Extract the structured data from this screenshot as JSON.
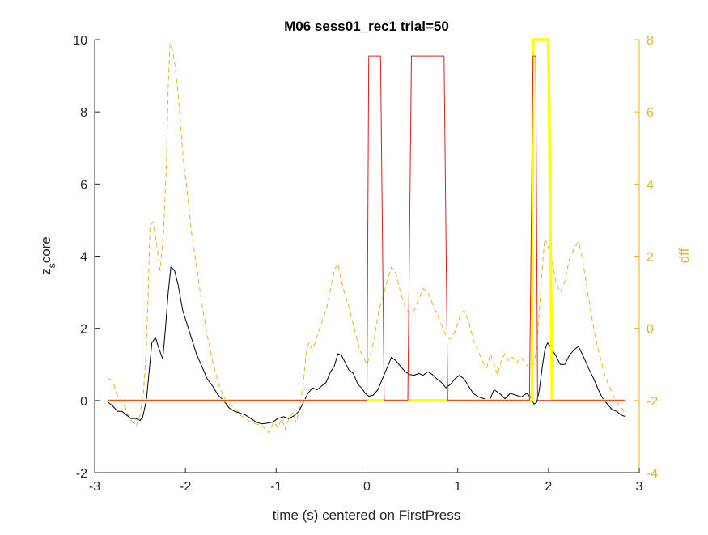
{
  "chart_data": {
    "type": "line",
    "title": "M06 sess01_rec1 trial=50",
    "xlabel": "time (s) centered on FirstPress",
    "ylabel_left": {
      "main": "z",
      "sub": "s",
      "rest": "core"
    },
    "ylabel_right": "dff",
    "xlim": [
      -3,
      3
    ],
    "ylim_left": [
      -2,
      10
    ],
    "ylim_right": [
      -4,
      8
    ],
    "x_ticks": [
      -3,
      -2,
      -1,
      0,
      1,
      2,
      3
    ],
    "x_tick_labels": [
      "-3",
      "-2",
      "-1",
      "0",
      "1",
      "2",
      "3"
    ],
    "y_left_ticks": [
      -2,
      0,
      2,
      4,
      6,
      8,
      10
    ],
    "y_left_tick_labels": [
      "-2",
      "0",
      "2",
      "4",
      "6",
      "8",
      "10"
    ],
    "y_right_ticks": [
      -4,
      -2,
      0,
      2,
      4,
      6,
      8
    ],
    "y_right_tick_labels": [
      "-4",
      "-2",
      "0",
      "2",
      "4",
      "6",
      "8"
    ],
    "grid": false,
    "colors": {
      "axis": "#262626",
      "right_axis": "#EDB120",
      "zscore": "#000000",
      "dff": "#EDB120",
      "red_events": "#D62020",
      "yellow_events": "#FFFF00"
    },
    "series": [
      {
        "axis": "left",
        "style": "solid",
        "color": "#000000",
        "points": [
          [
            -2.85,
            -0.05
          ],
          [
            -2.8,
            -0.15
          ],
          [
            -2.75,
            -0.3
          ],
          [
            -2.7,
            -0.3
          ],
          [
            -2.65,
            -0.4
          ],
          [
            -2.6,
            -0.5
          ],
          [
            -2.55,
            -0.5
          ],
          [
            -2.5,
            -0.55
          ],
          [
            -2.47,
            -0.45
          ],
          [
            -2.43,
            0
          ],
          [
            -2.4,
            0.8
          ],
          [
            -2.37,
            1.6
          ],
          [
            -2.33,
            1.75
          ],
          [
            -2.3,
            1.5
          ],
          [
            -2.25,
            1.15
          ],
          [
            -2.22,
            2
          ],
          [
            -2.19,
            3
          ],
          [
            -2.16,
            3.7
          ],
          [
            -2.12,
            3.6
          ],
          [
            -2.08,
            3.2
          ],
          [
            -2.03,
            2.5
          ],
          [
            -1.98,
            2.1
          ],
          [
            -1.93,
            1.7
          ],
          [
            -1.88,
            1.3
          ],
          [
            -1.82,
            0.95
          ],
          [
            -1.76,
            0.6
          ],
          [
            -1.7,
            0.4
          ],
          [
            -1.64,
            0.15
          ],
          [
            -1.58,
            0
          ],
          [
            -1.52,
            -0.2
          ],
          [
            -1.46,
            -0.3
          ],
          [
            -1.4,
            -0.35
          ],
          [
            -1.34,
            -0.4
          ],
          [
            -1.28,
            -0.5
          ],
          [
            -1.22,
            -0.6
          ],
          [
            -1.16,
            -0.65
          ],
          [
            -1.1,
            -0.63
          ],
          [
            -1.04,
            -0.6
          ],
          [
            -0.98,
            -0.5
          ],
          [
            -0.92,
            -0.45
          ],
          [
            -0.86,
            -0.5
          ],
          [
            -0.8,
            -0.42
          ],
          [
            -0.75,
            -0.3
          ],
          [
            -0.7,
            -0.05
          ],
          [
            -0.65,
            0.2
          ],
          [
            -0.6,
            0.35
          ],
          [
            -0.55,
            0.3
          ],
          [
            -0.5,
            0.4
          ],
          [
            -0.45,
            0.5
          ],
          [
            -0.4,
            0.8
          ],
          [
            -0.36,
            0.95
          ],
          [
            -0.32,
            1.3
          ],
          [
            -0.28,
            1.25
          ],
          [
            -0.24,
            1.05
          ],
          [
            -0.2,
            0.85
          ],
          [
            -0.15,
            0.75
          ],
          [
            -0.1,
            0.45
          ],
          [
            -0.06,
            0.35
          ],
          [
            -0.02,
            0.2
          ],
          [
            0.02,
            0.12
          ],
          [
            0.07,
            0.15
          ],
          [
            0.12,
            0.3
          ],
          [
            0.17,
            0.6
          ],
          [
            0.22,
            0.9
          ],
          [
            0.27,
            1.2
          ],
          [
            0.32,
            1.1
          ],
          [
            0.37,
            0.95
          ],
          [
            0.42,
            0.8
          ],
          [
            0.47,
            0.72
          ],
          [
            0.52,
            0.7
          ],
          [
            0.57,
            0.75
          ],
          [
            0.62,
            0.7
          ],
          [
            0.67,
            0.8
          ],
          [
            0.72,
            0.72
          ],
          [
            0.77,
            0.6
          ],
          [
            0.82,
            0.5
          ],
          [
            0.87,
            0.35
          ],
          [
            0.92,
            0.45
          ],
          [
            0.97,
            0.6
          ],
          [
            1.02,
            0.7
          ],
          [
            1.07,
            0.6
          ],
          [
            1.12,
            0.4
          ],
          [
            1.17,
            0.2
          ],
          [
            1.23,
            0.1
          ],
          [
            1.29,
            0.05
          ],
          [
            1.35,
            0.0
          ],
          [
            1.4,
            0.3
          ],
          [
            1.46,
            0.2
          ],
          [
            1.52,
            0.05
          ],
          [
            1.58,
            0.2
          ],
          [
            1.64,
            0.15
          ],
          [
            1.7,
            0.1
          ],
          [
            1.76,
            0.2
          ],
          [
            1.8,
            0.1
          ],
          [
            1.84,
            -0.1
          ],
          [
            1.87,
            -0.05
          ],
          [
            1.9,
            0.3
          ],
          [
            1.93,
            0.9
          ],
          [
            1.96,
            1.4
          ],
          [
            1.99,
            1.6
          ],
          [
            2.03,
            1.45
          ],
          [
            2.08,
            1.25
          ],
          [
            2.13,
            1.0
          ],
          [
            2.18,
            1.0
          ],
          [
            2.23,
            1.25
          ],
          [
            2.28,
            1.4
          ],
          [
            2.33,
            1.5
          ],
          [
            2.38,
            1.25
          ],
          [
            2.44,
            0.9
          ],
          [
            2.5,
            0.6
          ],
          [
            2.55,
            0.3
          ],
          [
            2.6,
            0.05
          ],
          [
            2.65,
            -0.1
          ],
          [
            2.7,
            -0.25
          ],
          [
            2.75,
            -0.3
          ],
          [
            2.8,
            -0.4
          ],
          [
            2.85,
            -0.45
          ]
        ]
      },
      {
        "axis": "right",
        "style": "dashed",
        "color": "#EDB120",
        "points": [
          [
            -2.85,
            -1.4
          ],
          [
            -2.8,
            -1.45
          ],
          [
            -2.76,
            -1.8
          ],
          [
            -2.71,
            -2.0
          ],
          [
            -2.66,
            -2.2
          ],
          [
            -2.62,
            -2.5
          ],
          [
            -2.58,
            -2.6
          ],
          [
            -2.54,
            -2.7
          ],
          [
            -2.5,
            -2.4
          ],
          [
            -2.46,
            -1.7
          ],
          [
            -2.43,
            -0.5
          ],
          [
            -2.41,
            1.0
          ],
          [
            -2.39,
            2.8
          ],
          [
            -2.36,
            2.95
          ],
          [
            -2.32,
            2.4
          ],
          [
            -2.28,
            1.6
          ],
          [
            -2.24,
            2.7
          ],
          [
            -2.21,
            4.5
          ],
          [
            -2.19,
            6.7
          ],
          [
            -2.17,
            7.9
          ],
          [
            -2.14,
            7.7
          ],
          [
            -2.11,
            7.2
          ],
          [
            -2.08,
            6.5
          ],
          [
            -2.05,
            5.5
          ],
          [
            -2.02,
            4.6
          ],
          [
            -1.98,
            3.8
          ],
          [
            -1.93,
            2.6
          ],
          [
            -1.87,
            1.6
          ],
          [
            -1.82,
            0.7
          ],
          [
            -1.76,
            -0.2
          ],
          [
            -1.7,
            -0.9
          ],
          [
            -1.64,
            -1.5
          ],
          [
            -1.58,
            -1.9
          ],
          [
            -1.52,
            -2.1
          ],
          [
            -1.46,
            -2.2
          ],
          [
            -1.4,
            -2.4
          ],
          [
            -1.34,
            -2.5
          ],
          [
            -1.28,
            -2.6
          ],
          [
            -1.22,
            -2.65
          ],
          [
            -1.16,
            -2.7
          ],
          [
            -1.12,
            -2.8
          ],
          [
            -1.08,
            -2.9
          ],
          [
            -1.03,
            -2.6
          ],
          [
            -0.98,
            -2.75
          ],
          [
            -0.94,
            -2.5
          ],
          [
            -0.9,
            -2.8
          ],
          [
            -0.86,
            -2.5
          ],
          [
            -0.82,
            -2.35
          ],
          [
            -0.78,
            -2.6
          ],
          [
            -0.74,
            -2.2
          ],
          [
            -0.7,
            -1.5
          ],
          [
            -0.67,
            -0.7
          ],
          [
            -0.64,
            -0.4
          ],
          [
            -0.6,
            -0.6
          ],
          [
            -0.56,
            -0.3
          ],
          [
            -0.52,
            0.0
          ],
          [
            -0.48,
            0.3
          ],
          [
            -0.44,
            0.6
          ],
          [
            -0.4,
            1.1
          ],
          [
            -0.36,
            1.6
          ],
          [
            -0.32,
            1.8
          ],
          [
            -0.28,
            1.3
          ],
          [
            -0.24,
            0.9
          ],
          [
            -0.2,
            0.6
          ],
          [
            -0.16,
            0.2
          ],
          [
            -0.12,
            -0.2
          ],
          [
            -0.08,
            -0.6
          ],
          [
            -0.04,
            -0.8
          ],
          [
            0.0,
            -1.0
          ],
          [
            0.04,
            -0.7
          ],
          [
            0.08,
            -0.3
          ],
          [
            0.13,
            0.5
          ],
          [
            0.18,
            0.9
          ],
          [
            0.22,
            1.3
          ],
          [
            0.27,
            1.7
          ],
          [
            0.32,
            1.5
          ],
          [
            0.37,
            1.0
          ],
          [
            0.42,
            0.6
          ],
          [
            0.47,
            0.4
          ],
          [
            0.52,
            0.5
          ],
          [
            0.57,
            0.8
          ],
          [
            0.62,
            1.1
          ],
          [
            0.67,
            1.0
          ],
          [
            0.72,
            0.7
          ],
          [
            0.77,
            0.4
          ],
          [
            0.82,
            0.1
          ],
          [
            0.87,
            -0.2
          ],
          [
            0.92,
            -0.3
          ],
          [
            0.97,
            -0.1
          ],
          [
            1.02,
            0.3
          ],
          [
            1.07,
            0.5
          ],
          [
            1.12,
            0.2
          ],
          [
            1.17,
            -0.3
          ],
          [
            1.22,
            -0.6
          ],
          [
            1.27,
            -0.9
          ],
          [
            1.32,
            -1.1
          ],
          [
            1.36,
            -0.7
          ],
          [
            1.4,
            -1.0
          ],
          [
            1.44,
            -1.3
          ],
          [
            1.48,
            -0.9
          ],
          [
            1.52,
            -0.7
          ],
          [
            1.56,
            -0.9
          ],
          [
            1.6,
            -0.8
          ],
          [
            1.65,
            -0.95
          ],
          [
            1.7,
            -0.8
          ],
          [
            1.75,
            -1.0
          ],
          [
            1.8,
            -1.1
          ],
          [
            1.84,
            -1.0
          ],
          [
            1.87,
            -0.5
          ],
          [
            1.9,
            0.5
          ],
          [
            1.93,
            1.6
          ],
          [
            1.96,
            2.5
          ],
          [
            1.99,
            2.3
          ],
          [
            2.03,
            2.0
          ],
          [
            2.08,
            1.3
          ],
          [
            2.13,
            1.0
          ],
          [
            2.18,
            1.3
          ],
          [
            2.23,
            1.9
          ],
          [
            2.28,
            2.2
          ],
          [
            2.33,
            2.4
          ],
          [
            2.37,
            2.0
          ],
          [
            2.42,
            1.2
          ],
          [
            2.47,
            0.4
          ],
          [
            2.52,
            -0.3
          ],
          [
            2.57,
            -0.8
          ],
          [
            2.62,
            -1.3
          ],
          [
            2.67,
            -1.6
          ],
          [
            2.72,
            -1.9
          ],
          [
            2.77,
            -2.1
          ],
          [
            2.82,
            -2.25
          ],
          [
            2.85,
            -2.4
          ]
        ]
      },
      {
        "axis": "left",
        "style": "solid",
        "color": "#D62020",
        "points": [
          [
            -2.85,
            0
          ],
          [
            0.0,
            0
          ],
          [
            0.02,
            9.55
          ],
          [
            0.15,
            9.55
          ],
          [
            0.19,
            0
          ],
          [
            0.45,
            0
          ],
          [
            0.49,
            9.55
          ],
          [
            0.85,
            9.55
          ],
          [
            0.89,
            0
          ],
          [
            1.79,
            0
          ],
          [
            1.83,
            9.55
          ],
          [
            1.86,
            9.55
          ],
          [
            1.88,
            0
          ],
          [
            2.85,
            0
          ]
        ]
      },
      {
        "axis": "left",
        "style": "solid_thick",
        "color": "#FFFF00",
        "points": [
          [
            -2.85,
            0
          ],
          [
            1.82,
            0
          ],
          [
            1.83,
            10
          ],
          [
            2.0,
            10
          ],
          [
            2.04,
            0
          ],
          [
            2.85,
            0
          ]
        ]
      }
    ]
  }
}
